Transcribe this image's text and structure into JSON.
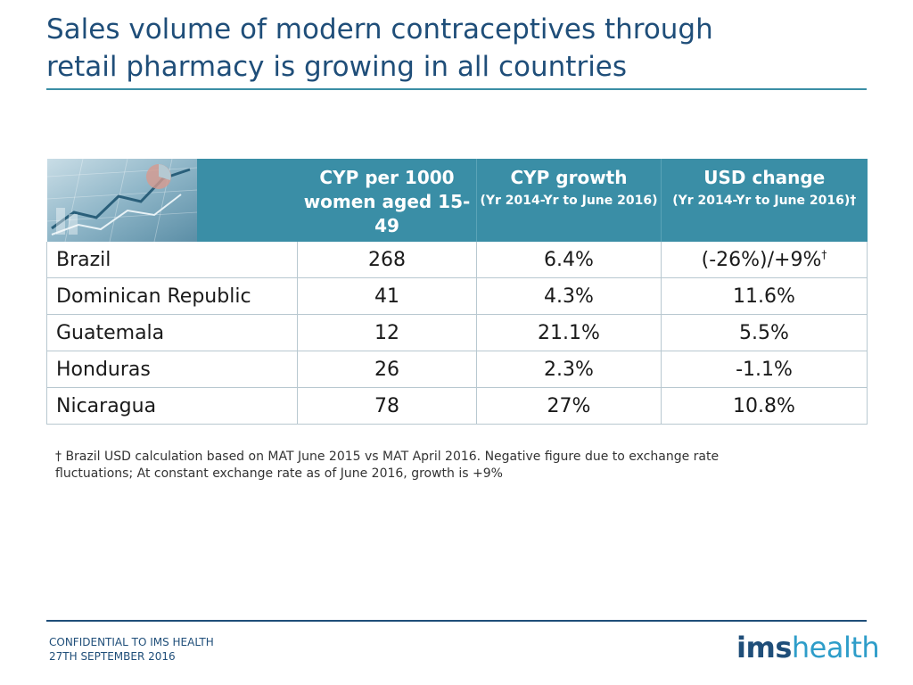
{
  "title": {
    "line1": "Sales volume of modern contraceptives through",
    "line2": "retail pharmacy is growing in all countries"
  },
  "table": {
    "headers": [
      {
        "main": "CYP per 1000 women aged 15-49",
        "sub": ""
      },
      {
        "main": "CYP growth",
        "sub": "(Yr 2014-Yr to June 2016)"
      },
      {
        "main": "USD change",
        "sub": "(Yr 2014-Yr to June 2016)†"
      }
    ],
    "rows": [
      {
        "country": "Brazil",
        "cyp": "268",
        "growth": "6.4%",
        "usd": "(-26%)/+9%",
        "usd_mark": "†"
      },
      {
        "country": "Dominican Republic",
        "cyp": "41",
        "growth": "4.3%",
        "usd": "11.6%"
      },
      {
        "country": "Guatemala",
        "cyp": "12",
        "growth": "21.1%",
        "usd": "5.5%"
      },
      {
        "country": "Honduras",
        "cyp": "26",
        "growth": "2.3%",
        "usd": "-1.1%"
      },
      {
        "country": "Nicaragua",
        "cyp": "78",
        "growth": "27%",
        "usd": "10.8%"
      }
    ]
  },
  "footnote": {
    "line1": "† Brazil USD calculation based on MAT June 2015 vs MAT April 2016. Negative figure due to exchange rate",
    "line2": "fluctuations; At constant exchange rate as of June 2016, growth is +9%"
  },
  "footer": {
    "line1": "CONFIDENTIAL TO IMS HEALTH",
    "line2": "27TH SEPTEMBER 2016"
  },
  "logo": {
    "part1": "ims",
    "part2": "health"
  },
  "colors": {
    "title": "#1f4e79",
    "header_bg": "#3a8ea6",
    "logo_accent": "#2e9dc9"
  }
}
